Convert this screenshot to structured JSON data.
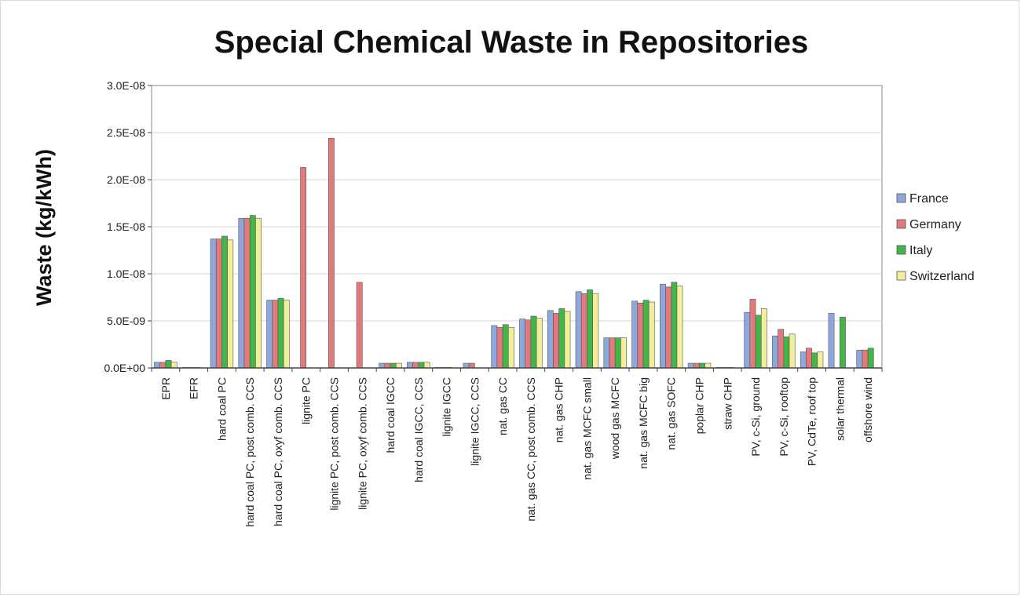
{
  "chart_data": {
    "type": "bar",
    "title": "Special Chemical Waste in Repositories",
    "xlabel": "",
    "ylabel": "Waste (kg/kWh)",
    "ylim": [
      0,
      3e-08
    ],
    "y_ticks": [
      0,
      5e-09,
      1e-08,
      1.5e-08,
      2e-08,
      2.5e-08,
      3e-08
    ],
    "y_tick_labels": [
      "0.0E+00",
      "5.0E-09",
      "1.0E-08",
      "1.5E-08",
      "2.0E-08",
      "2.5E-08",
      "3.0E-08"
    ],
    "grid": true,
    "legend_position": "right",
    "categories": [
      "EPR",
      "EFR",
      "hard coal PC",
      "hard coal PC, post comb. CCS",
      "hard coal PC, oxyf comb. CCS",
      "lignite PC",
      "lignite PC, post comb. CCS",
      "lignite PC, oxyf comb. CCS",
      "hard coal IGCC",
      "hard coal IGCC, CCS",
      "lignite IGCC",
      "lignite IGCC, CCS",
      "nat. gas CC",
      "nat. gas CC, post comb. CCS",
      "nat. gas CHP",
      "nat. gas MCFC small",
      "wood gas MCFC",
      "nat. gas MCFC big",
      "nat. gas SOFC",
      "poplar CHP",
      "straw CHP",
      "PV, c-Si, ground",
      "PV, c-Si, rooftop",
      "PV, CdTe, roof top",
      "solar thermal",
      "offshore wind"
    ],
    "series": [
      {
        "name": "France",
        "color": "#8ea7dc",
        "values": [
          6e-10,
          1e-11,
          1.37e-08,
          1.59e-08,
          7.2e-09,
          null,
          null,
          null,
          5e-10,
          6e-10,
          1e-11,
          5e-10,
          4.5e-09,
          5.2e-09,
          6.1e-09,
          8.1e-09,
          3.2e-09,
          7.1e-09,
          8.9e-09,
          5e-10,
          1e-11,
          5.9e-09,
          3.4e-09,
          1.7e-09,
          5.8e-09,
          1.9e-09
        ]
      },
      {
        "name": "Germany",
        "color": "#e3797b",
        "values": [
          6e-10,
          1e-11,
          1.37e-08,
          1.59e-08,
          7.2e-09,
          2.13e-08,
          2.44e-08,
          9.1e-09,
          5e-10,
          6e-10,
          1e-11,
          5e-10,
          4.3e-09,
          5.1e-09,
          5.8e-09,
          7.9e-09,
          3.2e-09,
          6.9e-09,
          8.6e-09,
          5e-10,
          1e-11,
          7.3e-09,
          4.1e-09,
          2.1e-09,
          null,
          1.9e-09
        ]
      },
      {
        "name": "Italy",
        "color": "#43b64a",
        "values": [
          8e-10,
          1e-11,
          1.4e-08,
          1.62e-08,
          7.4e-09,
          null,
          null,
          null,
          5e-10,
          6e-10,
          1e-11,
          null,
          4.6e-09,
          5.5e-09,
          6.3e-09,
          8.3e-09,
          3.2e-09,
          7.2e-09,
          9.1e-09,
          5e-10,
          1e-11,
          5.6e-09,
          3.3e-09,
          1.6e-09,
          5.4e-09,
          2.1e-09
        ]
      },
      {
        "name": "Switzerland",
        "color": "#f2ee9a",
        "values": [
          6e-10,
          null,
          1.36e-08,
          1.59e-08,
          7.2e-09,
          null,
          null,
          null,
          5e-10,
          6e-10,
          null,
          null,
          4.3e-09,
          5.3e-09,
          6e-09,
          7.9e-09,
          3.2e-09,
          7e-09,
          8.7e-09,
          5e-10,
          null,
          6.3e-09,
          3.6e-09,
          1.7e-09,
          null,
          null
        ]
      }
    ]
  }
}
